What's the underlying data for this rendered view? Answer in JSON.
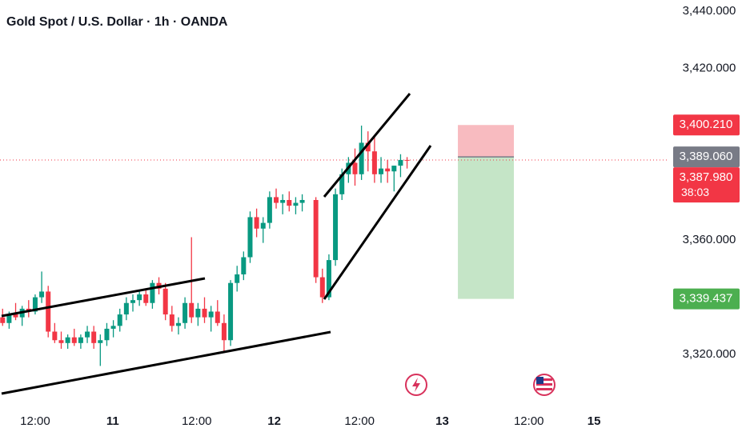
{
  "chart_data": {
    "type": "candlestick",
    "title": "Gold Spot / U.S. Dollar · 1h · OANDA",
    "up_color": "#089981",
    "down_color": "#f23645",
    "x": [
      0.4,
      1.4,
      2.4,
      3.4,
      4.4,
      5.4,
      6.4,
      7.4,
      8.4,
      9.4,
      10.4,
      11.4,
      12.4,
      13.4,
      14.4,
      15.4,
      16.4,
      17.4,
      18.4,
      19.4,
      20.4,
      21.4,
      22.4,
      23.4,
      24.4,
      25.4,
      26.4,
      27.4,
      28.4,
      29.4,
      30.4,
      31.4,
      32.4,
      33.4,
      34.4,
      35.4,
      36.4,
      37.4,
      38.4,
      39.4,
      40.4,
      41.4,
      42.4,
      43.4,
      44.4,
      45.4,
      46.4,
      48.5,
      49.5,
      50.5,
      51.5,
      52.5,
      53.5,
      54.5,
      55.5,
      56.5,
      57.5,
      58.5,
      59.5,
      60.5,
      61.5,
      62.5
    ],
    "open": [
      3333,
      3331,
      3334,
      3333,
      3336,
      3335,
      3340,
      3342,
      3328,
      3325,
      3324,
      3326,
      3324,
      3326,
      3328,
      3324,
      3325,
      3329,
      3330,
      3334,
      3338,
      3339,
      3341,
      3338,
      3345,
      3343,
      3334,
      3330,
      3331,
      3338,
      3333,
      3336,
      3333,
      3335,
      3331,
      3325,
      3345,
      3348,
      3354,
      3368,
      3364,
      3366,
      3375,
      3373,
      3374,
      3372,
      3373,
      3374,
      3347,
      3340,
      3353,
      3376,
      3383,
      3387,
      3383,
      3394,
      3391,
      3383,
      3385,
      3384,
      3386,
      3388
    ],
    "high": [
      3336,
      3335,
      3338,
      3337,
      3339,
      3341,
      3349,
      3344,
      3331,
      3328,
      3327,
      3329,
      3327,
      3330,
      3330,
      3327,
      3331,
      3332,
      3336,
      3340,
      3341,
      3342,
      3343,
      3346,
      3347,
      3345,
      3337,
      3333,
      3340,
      3361,
      3338,
      3340,
      3337,
      3339,
      3334,
      3346,
      3351,
      3356,
      3370,
      3371,
      3368,
      3377,
      3378,
      3376,
      3377,
      3375,
      3376,
      3375,
      3350,
      3355,
      3378,
      3385,
      3389,
      3392,
      3400,
      3398,
      3396,
      3389,
      3388,
      3386,
      3390,
      3389
    ],
    "low": [
      3330,
      3329,
      3332,
      3330,
      3333,
      3334,
      3338,
      3326,
      3324,
      3322,
      3322,
      3323,
      3322,
      3324,
      3322,
      3316,
      3323,
      3326,
      3328,
      3332,
      3335,
      3337,
      3337,
      3336,
      3341,
      3332,
      3328,
      3327,
      3329,
      3331,
      3330,
      3331,
      3328,
      3330,
      3321,
      3323,
      3342,
      3346,
      3352,
      3361,
      3359,
      3364,
      3371,
      3369,
      3370,
      3369,
      3370,
      3345,
      3338,
      3339,
      3351,
      3374,
      3380,
      3379,
      3381,
      3384,
      3380,
      3380,
      3380,
      3377,
      3382,
      3385
    ],
    "close": [
      3331,
      3334,
      3333,
      3336,
      3335,
      3340,
      3342,
      3328,
      3325,
      3324,
      3326,
      3324,
      3326,
      3328,
      3324,
      3325,
      3329,
      3330,
      3334,
      3338,
      3339,
      3341,
      3338,
      3345,
      3343,
      3334,
      3330,
      3331,
      3338,
      3333,
      3336,
      3333,
      3335,
      3331,
      3325,
      3345,
      3348,
      3354,
      3368,
      3364,
      3366,
      3375,
      3373,
      3374,
      3372,
      3373,
      3374,
      3347,
      3340,
      3353,
      3376,
      3383,
      3387,
      3383,
      3394,
      3391,
      3383,
      3385,
      3384,
      3386,
      3388,
      3387.98
    ],
    "xlim": [
      0,
      102
    ],
    "xticks": [
      {
        "value": 5.4,
        "label": "12:00"
      },
      {
        "value": 17.3,
        "label": "11"
      },
      {
        "value": 30.2,
        "label": "12:00"
      },
      {
        "value": 42.1,
        "label": "12"
      },
      {
        "value": 55.2,
        "label": "12:00"
      },
      {
        "value": 67.9,
        "label": "13"
      },
      {
        "value": 81.2,
        "label": "12:00"
      },
      {
        "value": 91.2,
        "label": "15"
      }
    ],
    "ylim": [
      3301.3,
      3443.9
    ],
    "yticks": [
      {
        "value": 3440,
        "label": "3,440.000"
      },
      {
        "value": 3420,
        "label": "3,420.000"
      },
      {
        "value": 3360,
        "label": "3,360.000"
      },
      {
        "value": 3320,
        "label": "3,320.000"
      }
    ],
    "price_labels": [
      {
        "value": 3400.21,
        "label": "3,400.210",
        "color": "#f23645"
      },
      {
        "value": 3389.06,
        "label": "3,389.060",
        "color": "#787b86"
      },
      {
        "value": 3387.98,
        "label": "3,387.980",
        "color": "#f23645",
        "countdown": "38:03"
      },
      {
        "value": 3339.437,
        "label": "3,339.437",
        "color": "#4caf50"
      }
    ],
    "position": {
      "x_start": 70.3,
      "x_end": 78.9
    }
  }
}
